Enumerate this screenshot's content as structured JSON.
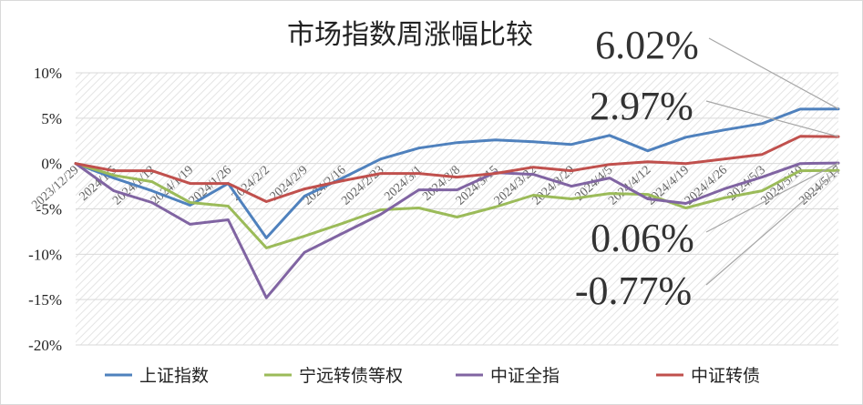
{
  "chart_data": {
    "type": "line",
    "title": "市场指数周涨幅比较",
    "xlabel": "",
    "ylabel": "",
    "ylim": [
      -20,
      10
    ],
    "yticks": [
      "10%",
      "5%",
      "0%",
      "-5%",
      "-10%",
      "-15%",
      "-20%"
    ],
    "ytick_values": [
      10,
      5,
      0,
      -5,
      -10,
      -15,
      -20
    ],
    "grid": true,
    "legend_position": "bottom",
    "x": [
      "2023/12/29",
      "2024/1/5",
      "2024/1/12",
      "2024/1/19",
      "2024/1/26",
      "2024/2/2",
      "2024/2/9",
      "2024/2/16",
      "2024/2/23",
      "2024/3/1",
      "2024/3/8",
      "2024/3/15",
      "2024/3/22",
      "2024/3/29",
      "2024/4/5",
      "2024/4/12",
      "2024/4/19",
      "2024/4/26",
      "2024/5/3",
      "2024/5/10",
      "2024/5/17"
    ],
    "series": [
      {
        "name": "上证指数",
        "color": "#4F81BD",
        "values": [
          0,
          -1.6,
          -3.0,
          -4.6,
          -2.2,
          -8.2,
          -3.6,
          -1.6,
          0.5,
          1.7,
          2.3,
          2.6,
          2.4,
          2.1,
          3.1,
          1.4,
          2.9,
          3.7,
          4.4,
          6.0,
          6.02
        ]
      },
      {
        "name": "宁远转债等权",
        "color": "#9BBB59",
        "values": [
          0,
          -1.3,
          -2.0,
          -4.3,
          -4.7,
          -9.3,
          -8.0,
          -6.6,
          -5.1,
          -4.9,
          -5.9,
          -4.8,
          -3.5,
          -3.9,
          -3.3,
          -3.4,
          -4.9,
          -3.8,
          -3.0,
          -0.8,
          -0.77
        ]
      },
      {
        "name": "中证全指",
        "color": "#8064A2",
        "values": [
          0,
          -3.0,
          -4.3,
          -6.7,
          -6.2,
          -14.8,
          -9.8,
          -7.7,
          -5.6,
          -2.9,
          -2.9,
          -1.0,
          -1.2,
          -2.5,
          -1.6,
          -3.9,
          -4.4,
          -2.8,
          -1.5,
          0.0,
          0.06
        ]
      },
      {
        "name": "中证转债",
        "color": "#C0504D",
        "values": [
          0,
          -0.8,
          -0.8,
          -2.2,
          -2.2,
          -4.2,
          -2.8,
          -1.9,
          -1.1,
          -1.1,
          -1.5,
          -1.1,
          -0.4,
          -0.8,
          -0.1,
          0.2,
          0.0,
          0.5,
          1.0,
          3.0,
          2.97
        ]
      }
    ],
    "annotations": [
      "6.02%",
      "2.97%",
      "0.06%",
      "-0.77%"
    ]
  }
}
